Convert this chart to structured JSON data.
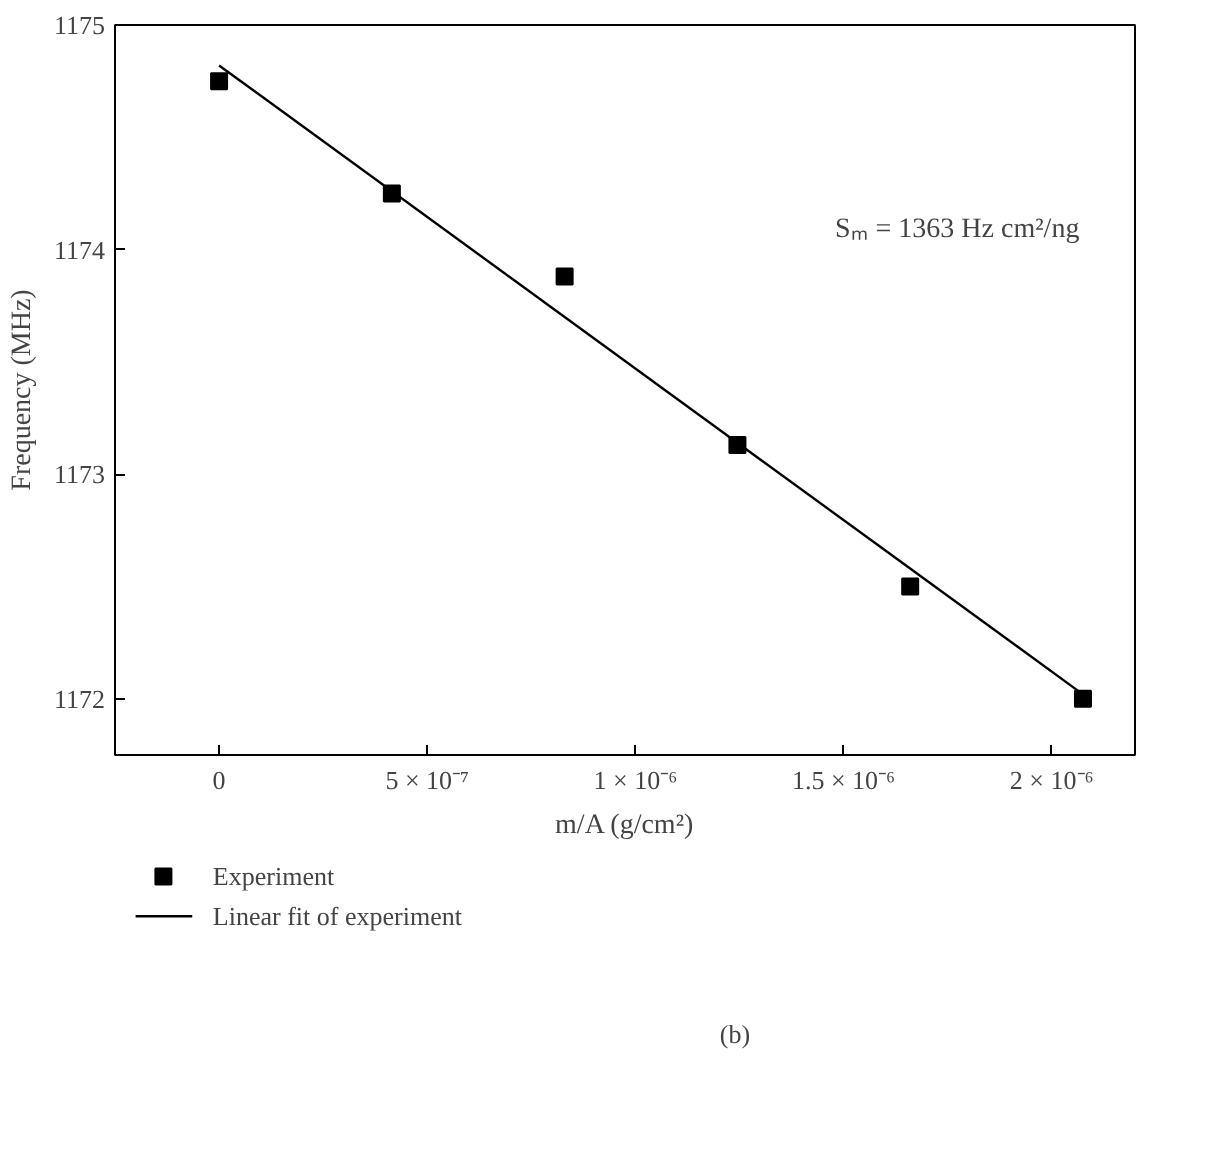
{
  "chart_data": {
    "type": "scatter",
    "xlabel": "m/A (g/cm²)",
    "ylabel": "Frequency (MHz)",
    "xlim": [
      -2.5e-07,
      2.2e-06
    ],
    "ylim": [
      1171.75,
      1175
    ],
    "xticks": [
      {
        "value": 0,
        "label": "0"
      },
      {
        "value": 5e-07,
        "label": "5 × 10⁻⁷"
      },
      {
        "value": 1e-06,
        "label": "1 × 10⁻⁶"
      },
      {
        "value": 1.5e-06,
        "label": "1.5 × 10⁻⁶"
      },
      {
        "value": 2e-06,
        "label": "2 × 10⁻⁶"
      }
    ],
    "yticks": [
      1172,
      1173,
      1174,
      1175
    ],
    "series": [
      {
        "name": "Experiment",
        "marker": "square",
        "color": "#000000",
        "x": [
          0,
          4.15e-07,
          8.3e-07,
          1.245e-06,
          1.66e-06,
          2.075e-06
        ],
        "values": [
          1174.75,
          1174.25,
          1173.88,
          1173.13,
          1172.5,
          1172.0
        ]
      },
      {
        "name": "Linear fit of experiment",
        "type": "line",
        "color": "#000000",
        "x": [
          0,
          2.075e-06
        ],
        "values": [
          1174.82,
          1172.02
        ]
      }
    ],
    "annotations": [
      "Sₘ = 1363 Hz cm²/ng",
      "(b)"
    ],
    "legend": "bottom",
    "grid": false
  }
}
